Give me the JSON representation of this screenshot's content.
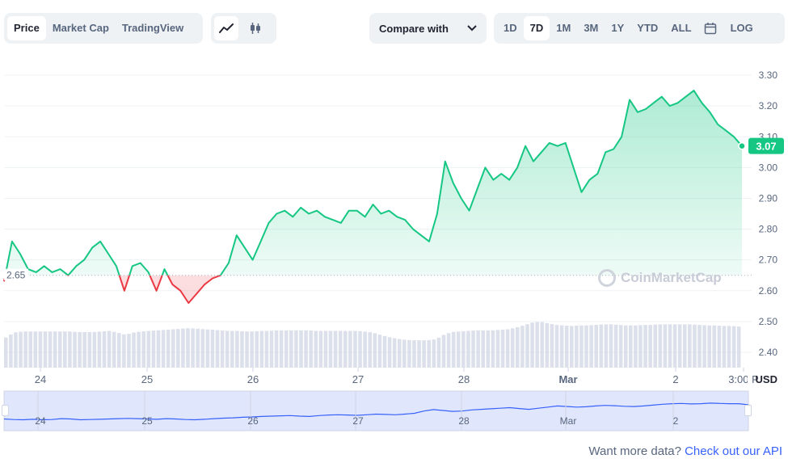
{
  "toolbar": {
    "view_tabs": [
      "Price",
      "Market Cap",
      "TradingView"
    ],
    "active_view": "Price",
    "chart_style_icons": [
      "line-chart-icon",
      "candlestick-icon"
    ],
    "compare_label": "Compare with",
    "ranges": [
      "1D",
      "7D",
      "1M",
      "3M",
      "1Y",
      "YTD",
      "ALL"
    ],
    "active_range": "7D",
    "calendar_icon": "calendar-icon",
    "log_label": "LOG"
  },
  "watermark": "CoinMarketCap",
  "footer": {
    "prefix": "Want more data? ",
    "link": "Check out our API"
  },
  "colors": {
    "up": "#16c784",
    "down": "#ea3943",
    "navigator_line": "#3861fb",
    "navigator_fill": "#e0e7fd"
  },
  "chart_data": {
    "type": "line",
    "y_ticks": [
      "3.30",
      "3.20",
      "3.10",
      "3.00",
      "2.90",
      "2.80",
      "2.70",
      "2.60",
      "2.50",
      "2.40"
    ],
    "ylim": [
      2.35,
      3.35
    ],
    "reference_price": 2.65,
    "reference_label": "2.65",
    "current_price": 3.07,
    "current_label": "3.07",
    "y_unit": "USD",
    "x_tick_labels": [
      "24",
      "25",
      "26",
      "27",
      "28",
      "Mar",
      "2",
      "3:00 P"
    ],
    "series": [
      {
        "values": [
          2.63,
          2.76,
          2.72,
          2.67,
          2.66,
          2.68,
          2.66,
          2.67,
          2.65,
          2.68,
          2.7,
          2.74,
          2.76,
          2.72,
          2.68,
          2.6,
          2.68,
          2.69,
          2.66,
          2.6,
          2.67,
          2.62,
          2.6,
          2.56,
          2.59,
          2.62,
          2.64,
          2.65,
          2.69,
          2.78,
          2.74,
          2.7,
          2.76,
          2.82,
          2.85,
          2.86,
          2.84,
          2.87,
          2.85,
          2.86,
          2.84,
          2.83,
          2.82,
          2.86,
          2.86,
          2.84,
          2.88,
          2.85,
          2.86,
          2.84,
          2.83,
          2.8,
          2.78,
          2.76,
          2.85,
          3.02,
          2.95,
          2.9,
          2.86,
          2.93,
          3.0,
          2.96,
          2.98,
          2.96,
          3.0,
          3.07,
          3.02,
          3.05,
          3.08,
          3.07,
          3.08,
          3.0,
          2.92,
          2.96,
          2.98,
          3.05,
          3.06,
          3.1,
          3.22,
          3.18,
          3.19,
          3.21,
          3.23,
          3.2,
          3.21,
          3.23,
          3.25,
          3.21,
          3.18,
          3.14,
          3.12,
          3.1,
          3.07
        ]
      }
    ],
    "volume": [
      0.55,
      0.64,
      0.66,
      0.66,
      0.66,
      0.66,
      0.66,
      0.66,
      0.66,
      0.65,
      0.65,
      0.65,
      0.66,
      0.67,
      0.64,
      0.6,
      0.64,
      0.66,
      0.67,
      0.68,
      0.69,
      0.7,
      0.71,
      0.72,
      0.71,
      0.7,
      0.69,
      0.68,
      0.67,
      0.67,
      0.66,
      0.66,
      0.67,
      0.67,
      0.68,
      0.68,
      0.68,
      0.68,
      0.68,
      0.67,
      0.67,
      0.67,
      0.67,
      0.67,
      0.67,
      0.66,
      0.64,
      0.6,
      0.56,
      0.53,
      0.51,
      0.5,
      0.5,
      0.5,
      0.52,
      0.6,
      0.65,
      0.66,
      0.67,
      0.68,
      0.68,
      0.68,
      0.69,
      0.7,
      0.73,
      0.77,
      0.82,
      0.84,
      0.81,
      0.78,
      0.77,
      0.76,
      0.77,
      0.77,
      0.78,
      0.79,
      0.79,
      0.78,
      0.77,
      0.77,
      0.78,
      0.78,
      0.79,
      0.79,
      0.79,
      0.79,
      0.79,
      0.78,
      0.77,
      0.77,
      0.76,
      0.76,
      0.75
    ],
    "navigator": [
      0.3,
      0.28,
      0.27,
      0.29,
      0.27,
      0.28,
      0.31,
      0.3,
      0.27,
      0.28,
      0.29,
      0.3,
      0.31,
      0.32,
      0.31,
      0.3,
      0.29,
      0.31,
      0.3,
      0.28,
      0.27,
      0.29,
      0.31,
      0.33,
      0.34,
      0.36,
      0.37,
      0.39,
      0.4,
      0.41,
      0.42,
      0.4,
      0.39,
      0.42,
      0.44,
      0.45,
      0.44,
      0.43,
      0.45,
      0.47,
      0.46,
      0.45,
      0.47,
      0.5,
      0.58,
      0.63,
      0.6,
      0.57,
      0.58,
      0.62,
      0.64,
      0.66,
      0.68,
      0.7,
      0.67,
      0.64,
      0.68,
      0.72,
      0.76,
      0.74,
      0.72,
      0.73,
      0.76,
      0.78,
      0.77,
      0.75,
      0.74,
      0.76,
      0.79,
      0.82,
      0.84,
      0.85,
      0.83,
      0.84,
      0.86,
      0.85,
      0.84,
      0.84,
      0.8
    ],
    "navigator_ticks": [
      "24",
      "25",
      "26",
      "27",
      "28",
      "Mar",
      "2"
    ],
    "grid": true,
    "legend": "none"
  }
}
